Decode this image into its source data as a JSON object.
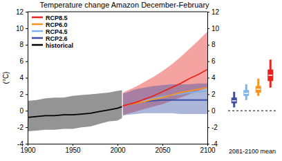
{
  "chart_data": {
    "type": "line",
    "title": "Temperature change Amazon December-February",
    "ylabel": "(°C)",
    "xlim": [
      1900,
      2100
    ],
    "xticks": [
      1900,
      1950,
      2000,
      2050,
      2100
    ],
    "ylim": [
      -4,
      12
    ],
    "yticks": [
      -4,
      -2,
      0,
      2,
      4,
      6,
      8,
      10,
      12
    ],
    "grid": false,
    "legend": "upper left",
    "box_label": "2081-2100 mean",
    "box_baseline": 0,
    "series": [
      {
        "name": "RCP8.5",
        "color": "#e8231f",
        "x": [
          2006,
          2010,
          2020,
          2030,
          2040,
          2050,
          2060,
          2070,
          2080,
          2090,
          2100
        ],
        "values": [
          0.6,
          0.7,
          1.0,
          1.4,
          1.8,
          2.3,
          2.8,
          3.3,
          3.9,
          4.4,
          5.0
        ],
        "low": [
          -0.5,
          -0.4,
          -0.1,
          0.2,
          0.5,
          0.8,
          1.2,
          1.6,
          2.0,
          2.4,
          2.8
        ],
        "high": [
          2.2,
          2.4,
          2.9,
          3.5,
          4.1,
          4.8,
          5.6,
          6.5,
          7.5,
          8.5,
          9.6
        ],
        "box": {
          "min": 2.8,
          "q1": 3.6,
          "median": 4.3,
          "q3": 5.0,
          "max": 6.2
        }
      },
      {
        "name": "RCP6.0",
        "color": "#f7941d",
        "x": [
          2006,
          2010,
          2020,
          2030,
          2040,
          2050,
          2060,
          2070,
          2080,
          2090,
          2100
        ],
        "values": [
          0.6,
          0.7,
          0.9,
          1.1,
          1.4,
          1.6,
          1.9,
          2.2,
          2.4,
          2.6,
          2.8
        ],
        "box": {
          "min": 1.8,
          "q1": 2.2,
          "median": 2.6,
          "q3": 3.0,
          "max": 3.9
        }
      },
      {
        "name": "RCP4.5",
        "color": "#7fb2e5",
        "x": [
          2006,
          2010,
          2020,
          2030,
          2040,
          2050,
          2060,
          2070,
          2080,
          2090,
          2100
        ],
        "values": [
          0.6,
          0.7,
          0.9,
          1.2,
          1.5,
          1.7,
          1.9,
          2.0,
          2.2,
          2.3,
          2.4
        ],
        "box": {
          "min": 1.3,
          "q1": 1.8,
          "median": 2.1,
          "q3": 2.5,
          "max": 3.2
        }
      },
      {
        "name": "RCP2.6",
        "color": "#3a4fa8",
        "x": [
          2006,
          2010,
          2020,
          2030,
          2040,
          2050,
          2060,
          2070,
          2080,
          2090,
          2100
        ],
        "values": [
          0.6,
          0.7,
          0.9,
          1.1,
          1.2,
          1.3,
          1.3,
          1.3,
          1.3,
          1.3,
          1.3
        ],
        "low": [
          -0.6,
          -0.5,
          -0.4,
          -0.3,
          -0.3,
          -0.3,
          -0.3,
          -0.4,
          -0.4,
          -0.4,
          -0.4
        ],
        "high": [
          2.1,
          2.2,
          2.6,
          2.8,
          3.0,
          3.1,
          3.2,
          3.2,
          3.2,
          3.3,
          3.3
        ],
        "box": {
          "min": 0.4,
          "q1": 0.9,
          "median": 1.2,
          "q3": 1.6,
          "max": 2.3
        }
      },
      {
        "name": "historical",
        "color": "#000000",
        "x": [
          1900,
          1910,
          1920,
          1930,
          1940,
          1950,
          1960,
          1970,
          1980,
          1990,
          2000,
          2005
        ],
        "values": [
          -0.8,
          -0.7,
          -0.6,
          -0.6,
          -0.5,
          -0.5,
          -0.4,
          -0.3,
          -0.1,
          0.1,
          0.3,
          0.5
        ],
        "low": [
          -2.5,
          -2.4,
          -2.3,
          -2.3,
          -2.2,
          -2.2,
          -2.0,
          -1.9,
          -1.6,
          -1.3,
          -1.2,
          -0.9
        ],
        "high": [
          1.2,
          1.3,
          1.5,
          1.6,
          1.6,
          1.8,
          1.9,
          2.0,
          2.1,
          2.2,
          2.4,
          2.5
        ]
      }
    ]
  }
}
